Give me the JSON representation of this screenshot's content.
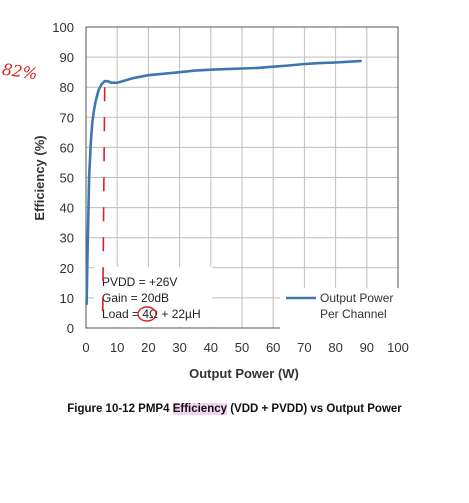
{
  "chart_data": {
    "type": "line",
    "title": "",
    "xlabel": "Output Power (W)",
    "ylabel_prefix": "",
    "ylabel_highlight": "Efficiency",
    "ylabel_suffix": " (%)",
    "xlim": [
      0,
      100
    ],
    "ylim": [
      0,
      100
    ],
    "xticks": [
      0,
      10,
      20,
      30,
      40,
      50,
      60,
      70,
      80,
      90,
      100
    ],
    "yticks": [
      0,
      10,
      20,
      30,
      40,
      50,
      60,
      70,
      80,
      90,
      100
    ],
    "grid": true,
    "series": [
      {
        "name": "Output Power Per Channel",
        "color": "#3e76b0",
        "x": [
          0.2,
          0.5,
          0.8,
          1,
          1.5,
          2,
          2.5,
          3,
          4,
          5,
          6,
          7,
          8,
          10,
          15,
          20,
          25,
          30,
          35,
          40,
          45,
          50,
          55,
          60,
          65,
          70,
          75,
          80,
          85,
          88
        ],
        "y": [
          8,
          26,
          40,
          50,
          61,
          68,
          72,
          75,
          79,
          81,
          82,
          82,
          81.5,
          81.5,
          83,
          84,
          84.5,
          85,
          85.5,
          85.8,
          86,
          86.2,
          86.4,
          86.8,
          87.2,
          87.7,
          88,
          88.2,
          88.5,
          88.7
        ]
      }
    ],
    "legend_position": "bottom-right",
    "legend_lines": [
      "Output Power",
      "Per Channel"
    ]
  },
  "conditions": [
    "PVDD = +26V",
    "Gain = 20dB",
    "Load = 4Ω + 22µH"
  ],
  "annotation": {
    "text": "82%",
    "color": "#e02020",
    "dashed_line_x": 6
  },
  "caption": {
    "prefix": "Figure 10-12 PMP4 ",
    "highlight": "Efficiency",
    "suffix": " (VDD + PVDD) vs Output Power"
  }
}
